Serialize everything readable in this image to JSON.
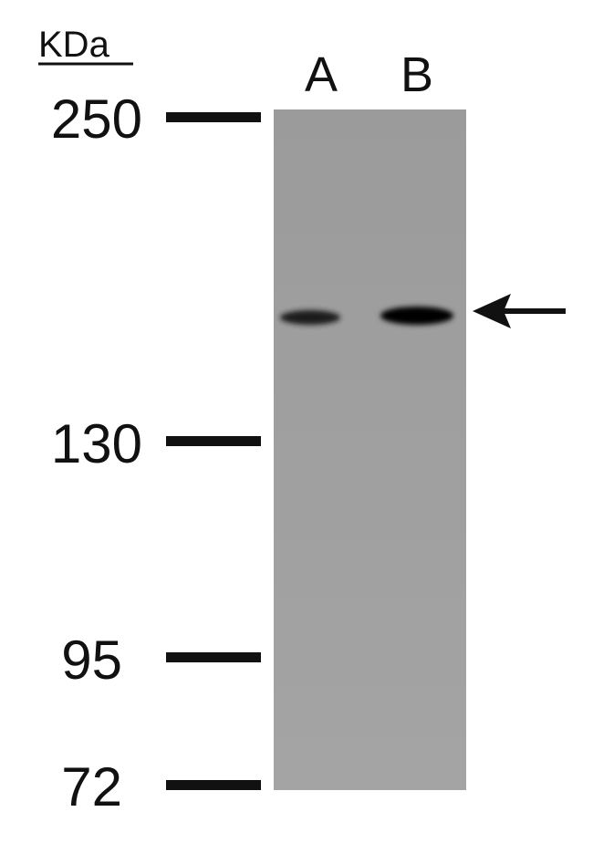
{
  "unit_label": "KDa",
  "lanes": [
    {
      "label": "A"
    },
    {
      "label": "B"
    }
  ],
  "markers": [
    {
      "label": "250"
    },
    {
      "label": "130"
    },
    {
      "label": "95"
    },
    {
      "label": "72"
    }
  ]
}
